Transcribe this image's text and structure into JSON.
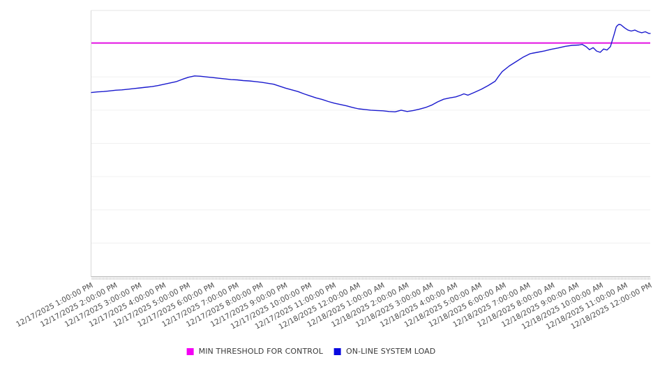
{
  "legend": {
    "items": [
      {
        "label": "MIN THRESHOLD FOR CONTROL",
        "color": "#f400f4"
      },
      {
        "label": "ON-LINE SYSTEM LOAD",
        "color": "#0a0ae0"
      }
    ]
  },
  "chart_data": {
    "type": "line",
    "title": "",
    "legend_position": "bottom",
    "x_axis": {
      "unit": "datetime",
      "range_hours": [
        0,
        23
      ],
      "minor_ticks": true,
      "tick_labels": [
        "12/17/2025 1:00:00 PM",
        "12/17/2025 2:00:00 PM",
        "12/17/2025 3:00:00 PM",
        "12/17/2025 4:00:00 PM",
        "12/17/2025 5:00:00 PM",
        "12/17/2025 6:00:00 PM",
        "12/17/2025 7:00:00 PM",
        "12/17/2025 8:00:00 PM",
        "12/17/2025 9:00:00 PM",
        "12/17/2025 10:00:00 PM",
        "12/17/2025 11:00:00 PM",
        "12/18/2025 12:00:00 AM",
        "12/18/2025 1:00:00 AM",
        "12/18/2025 2:00:00 AM",
        "12/18/2025 3:00:00 AM",
        "12/18/2025 4:00:00 AM",
        "12/18/2025 5:00:00 AM",
        "12/18/2025 6:00:00 AM",
        "12/18/2025 7:00:00 AM",
        "12/18/2025 8:00:00 AM",
        "12/18/2025 9:00:00 AM",
        "12/18/2025 10:00:00 AM",
        "12/18/2025 11:00:00 AM",
        "12/18/2025 12:00:00 PM"
      ]
    },
    "y_axis": {
      "range": [
        0,
        8
      ],
      "tick_labels": [],
      "gridlines": true
    },
    "series": [
      {
        "name": "MIN THRESHOLD FOR CONTROL",
        "kind": "threshold-line",
        "color": "#e613e6",
        "value": 7.02
      },
      {
        "name": "ON-LINE SYSTEM LOAD",
        "kind": "line",
        "color": "#1a1ace",
        "points_hours_value": [
          [
            0,
            5.53
          ],
          [
            0.25,
            5.55
          ],
          [
            0.5,
            5.56
          ],
          [
            0.75,
            5.58
          ],
          [
            1,
            5.6
          ],
          [
            1.25,
            5.61
          ],
          [
            1.5,
            5.63
          ],
          [
            1.75,
            5.65
          ],
          [
            2,
            5.67
          ],
          [
            2.25,
            5.69
          ],
          [
            2.5,
            5.71
          ],
          [
            2.75,
            5.74
          ],
          [
            3,
            5.78
          ],
          [
            3.25,
            5.82
          ],
          [
            3.5,
            5.86
          ],
          [
            3.75,
            5.93
          ],
          [
            4,
            5.99
          ],
          [
            4.25,
            6.03
          ],
          [
            4.5,
            6.02
          ],
          [
            4.75,
            6.0
          ],
          [
            5,
            5.98
          ],
          [
            5.25,
            5.96
          ],
          [
            5.5,
            5.94
          ],
          [
            5.75,
            5.92
          ],
          [
            6,
            5.91
          ],
          [
            6.25,
            5.89
          ],
          [
            6.5,
            5.88
          ],
          [
            6.75,
            5.86
          ],
          [
            7,
            5.84
          ],
          [
            7.25,
            5.81
          ],
          [
            7.5,
            5.78
          ],
          [
            7.75,
            5.72
          ],
          [
            8,
            5.66
          ],
          [
            8.25,
            5.61
          ],
          [
            8.5,
            5.56
          ],
          [
            8.75,
            5.49
          ],
          [
            9,
            5.43
          ],
          [
            9.25,
            5.37
          ],
          [
            9.5,
            5.32
          ],
          [
            9.75,
            5.26
          ],
          [
            10,
            5.21
          ],
          [
            10.25,
            5.17
          ],
          [
            10.5,
            5.13
          ],
          [
            10.75,
            5.08
          ],
          [
            11,
            5.04
          ],
          [
            11.25,
            5.02
          ],
          [
            11.5,
            5.0
          ],
          [
            11.75,
            4.99
          ],
          [
            12,
            4.98
          ],
          [
            12.25,
            4.96
          ],
          [
            12.5,
            4.95
          ],
          [
            12.75,
            5.0
          ],
          [
            13,
            4.96
          ],
          [
            13.25,
            4.99
          ],
          [
            13.5,
            5.03
          ],
          [
            13.75,
            5.08
          ],
          [
            14,
            5.15
          ],
          [
            14.25,
            5.25
          ],
          [
            14.5,
            5.33
          ],
          [
            14.75,
            5.37
          ],
          [
            15,
            5.4
          ],
          [
            15.2,
            5.45
          ],
          [
            15.33,
            5.49
          ],
          [
            15.5,
            5.45
          ],
          [
            15.75,
            5.53
          ],
          [
            16.05,
            5.63
          ],
          [
            16.33,
            5.74
          ],
          [
            16.62,
            5.87
          ],
          [
            16.76,
            6.02
          ],
          [
            16.91,
            6.16
          ],
          [
            17.2,
            6.33
          ],
          [
            17.5,
            6.47
          ],
          [
            17.78,
            6.6
          ],
          [
            18.06,
            6.7
          ],
          [
            18.35,
            6.74
          ],
          [
            18.64,
            6.78
          ],
          [
            18.92,
            6.83
          ],
          [
            19.2,
            6.87
          ],
          [
            19.5,
            6.92
          ],
          [
            19.78,
            6.95
          ],
          [
            20.07,
            6.96
          ],
          [
            20.2,
            6.98
          ],
          [
            20.36,
            6.91
          ],
          [
            20.5,
            6.82
          ],
          [
            20.65,
            6.88
          ],
          [
            20.79,
            6.78
          ],
          [
            20.94,
            6.74
          ],
          [
            21.08,
            6.84
          ],
          [
            21.22,
            6.81
          ],
          [
            21.36,
            6.91
          ],
          [
            21.51,
            7.27
          ],
          [
            21.6,
            7.5
          ],
          [
            21.65,
            7.55
          ],
          [
            21.71,
            7.58
          ],
          [
            21.79,
            7.57
          ],
          [
            21.94,
            7.48
          ],
          [
            22.08,
            7.41
          ],
          [
            22.22,
            7.38
          ],
          [
            22.37,
            7.41
          ],
          [
            22.51,
            7.36
          ],
          [
            22.65,
            7.33
          ],
          [
            22.8,
            7.36
          ],
          [
            22.94,
            7.31
          ],
          [
            23,
            7.31
          ]
        ]
      }
    ]
  }
}
